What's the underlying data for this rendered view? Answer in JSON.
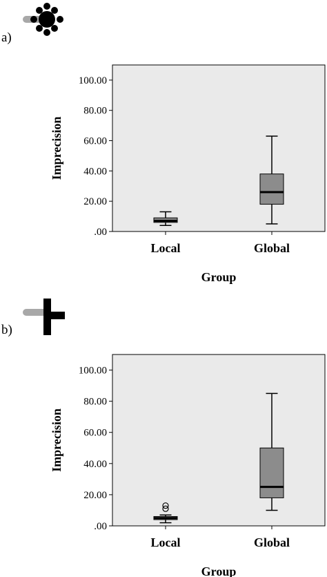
{
  "panels": [
    {
      "label": "a)"
    },
    {
      "label": "b)"
    }
  ],
  "colors": {
    "plot_background": "#eaeaea",
    "box_fill": "#8c8c8c",
    "icon_grey": "#a8a8a8",
    "icon_black": "#000000"
  },
  "chart_data": [
    {
      "type": "box",
      "panel": "a)",
      "xlabel": "Group",
      "ylabel": "Imprecision",
      "ylim": [
        0,
        110
      ],
      "yticks": [
        ".00",
        "20.00",
        "40.00",
        "60.00",
        "80.00",
        "100.00"
      ],
      "ytick_values": [
        0,
        20,
        40,
        60,
        80,
        100
      ],
      "grid": false,
      "categories": [
        "Local",
        "Global"
      ],
      "boxes": [
        {
          "category": "Local",
          "min": 4,
          "q1": 6,
          "median": 7,
          "q3": 9,
          "max": 13,
          "outliers": []
        },
        {
          "category": "Global",
          "min": 5,
          "q1": 18,
          "median": 26,
          "q3": 38,
          "max": 63,
          "outliers": []
        }
      ]
    },
    {
      "type": "box",
      "panel": "b)",
      "xlabel": "Group",
      "ylabel": "Imprecision",
      "ylim": [
        0,
        110
      ],
      "yticks": [
        ".00",
        "20.00",
        "40.00",
        "60.00",
        "80.00",
        "100.00"
      ],
      "ytick_values": [
        0,
        20,
        40,
        60,
        80,
        100
      ],
      "grid": false,
      "categories": [
        "Local",
        "Global"
      ],
      "boxes": [
        {
          "category": "Local",
          "min": 2,
          "q1": 4,
          "median": 5,
          "q3": 6,
          "max": 7,
          "outliers": [
            11,
            13
          ]
        },
        {
          "category": "Global",
          "min": 10,
          "q1": 18,
          "median": 25,
          "q3": 50,
          "max": 85,
          "outliers": []
        }
      ]
    }
  ]
}
